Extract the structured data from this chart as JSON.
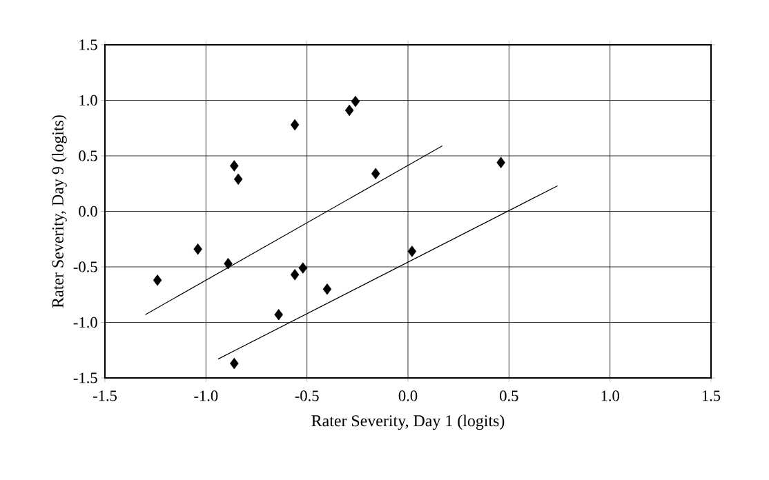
{
  "chart_data": {
    "type": "scatter",
    "xlabel": "Rater Severity, Day 1 (logits)",
    "ylabel": "Rater Severity, Day 9 (logits)",
    "xlim": [
      -1.5,
      1.5
    ],
    "ylim": [
      -1.5,
      1.5
    ],
    "xticks": [
      {
        "value": -1.5,
        "label": "-1.5"
      },
      {
        "value": -1.0,
        "label": "-1.0"
      },
      {
        "value": -0.5,
        "label": "-0.5"
      },
      {
        "value": 0.0,
        "label": "0.0"
      },
      {
        "value": 0.5,
        "label": "0.5"
      },
      {
        "value": 1.0,
        "label": "1.0"
      },
      {
        "value": 1.5,
        "label": "1.5"
      }
    ],
    "yticks": [
      {
        "value": -1.5,
        "label": "-1.5"
      },
      {
        "value": -1.0,
        "label": "-1.0"
      },
      {
        "value": -0.5,
        "label": "-0.5"
      },
      {
        "value": 0.0,
        "label": "0.0"
      },
      {
        "value": 0.5,
        "label": "0.5"
      },
      {
        "value": 1.0,
        "label": "1.0"
      },
      {
        "value": 1.5,
        "label": "1.5"
      }
    ],
    "grid": true,
    "series": [
      {
        "marker": "diamond",
        "color": "#000000",
        "x": [
          -1.24,
          -1.04,
          -0.89,
          -0.86,
          -0.84,
          -0.56,
          -0.29,
          -0.26,
          -0.16,
          -0.56,
          -0.52,
          -0.4,
          -0.64,
          -0.86,
          0.02,
          0.46
        ],
        "values": [
          -0.62,
          -0.34,
          -0.47,
          0.41,
          0.29,
          0.78,
          0.91,
          0.99,
          0.34,
          -0.57,
          -0.51,
          -0.7,
          -0.93,
          -1.37,
          -0.36,
          0.44
        ]
      },
      {
        "type": "line",
        "marker": "none",
        "color": "#000000",
        "x": [
          -1.3,
          0.17
        ],
        "values": [
          -0.93,
          0.59
        ]
      },
      {
        "type": "line",
        "marker": "none",
        "color": "#000000",
        "x": [
          -0.94,
          0.74
        ],
        "values": [
          -1.33,
          0.23
        ]
      }
    ]
  }
}
